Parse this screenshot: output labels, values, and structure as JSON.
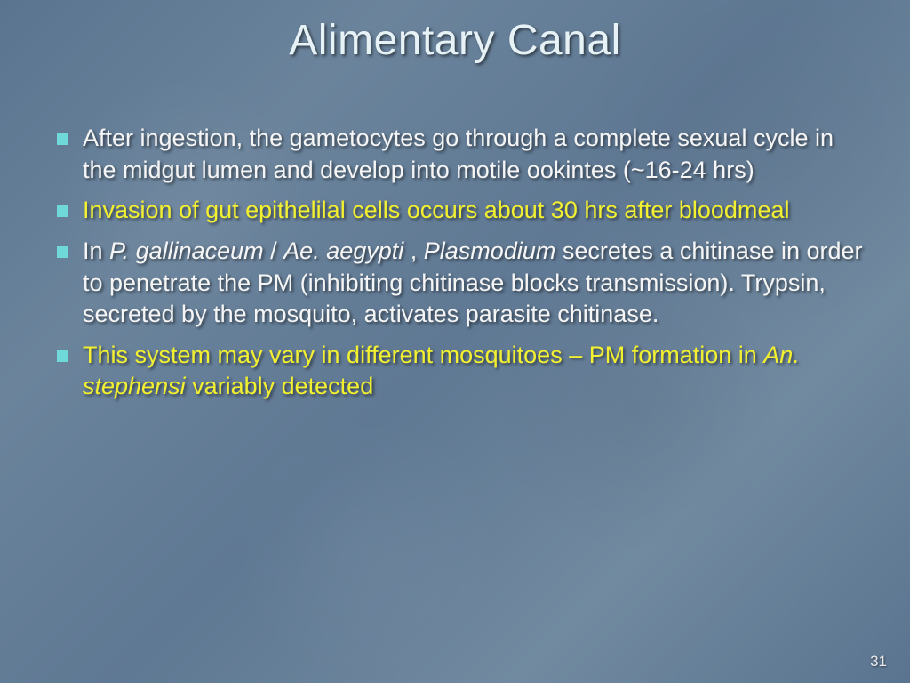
{
  "slide": {
    "title": "Alimentary Canal",
    "slide_number": "31",
    "background_gradient": [
      "#5a7490",
      "#6b849c",
      "#5f7893",
      "#718aa0"
    ],
    "title_color": "#e6f2f5",
    "title_fontsize": 48,
    "body_fontsize": 27,
    "bullet_marker_color": "#6fd8d8",
    "text_shadow": "2px 2px 3px rgba(0,0,0,0.55)",
    "colors": {
      "white": "#f5f5f5",
      "yellow": "#f2f030"
    },
    "bullets": [
      {
        "color": "white",
        "segments": [
          {
            "text": "After ingestion, the gametocytes go through a complete sexual cycle in the midgut lumen and develop into motile ookintes (~16-24 hrs)",
            "italic": false
          }
        ]
      },
      {
        "color": "yellow",
        "segments": [
          {
            "text": "Invasion of gut epithelilal cells occurs about 30 hrs after bloodmeal",
            "italic": false
          }
        ]
      },
      {
        "color": "white",
        "segments": [
          {
            "text": "In ",
            "italic": false
          },
          {
            "text": "P. gallinaceum",
            "italic": true
          },
          {
            "text": " / ",
            "italic": false
          },
          {
            "text": "Ae. aegypti",
            "italic": true
          },
          {
            "text": " , ",
            "italic": false
          },
          {
            "text": "Plasmodium",
            "italic": true
          },
          {
            "text": " secretes a chitinase in order to penetrate the PM (inhibiting chitinase blocks transmission).  Trypsin, secreted by the mosquito, activates parasite chitinase.",
            "italic": false
          }
        ]
      },
      {
        "color": "yellow",
        "segments": [
          {
            "text": "This system may vary in different mosquitoes – PM formation in ",
            "italic": false
          },
          {
            "text": "An. stephensi",
            "italic": true
          },
          {
            "text": " variably detected",
            "italic": false
          }
        ]
      }
    ]
  }
}
